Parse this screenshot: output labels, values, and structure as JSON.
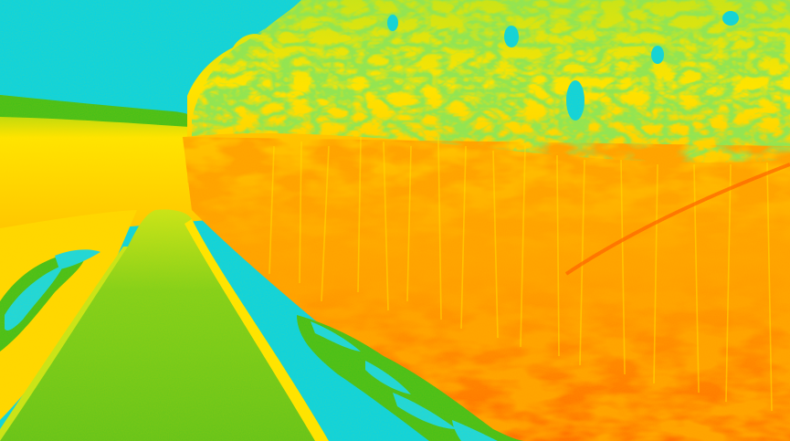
{
  "image": {
    "kind": "thermal false-color photograph",
    "palette": {
      "sky": "#00d4ea",
      "cold_water": "#10d8e8",
      "cool_green": "#3fbf1a",
      "mid_green": "#7cd11c",
      "lime": "#c6e61a",
      "yellow": "#ffe600",
      "amber": "#ffc400",
      "orange": "#ff9a00",
      "hot_orange": "#ff7a00",
      "hottest": "#ff4e00"
    }
  }
}
